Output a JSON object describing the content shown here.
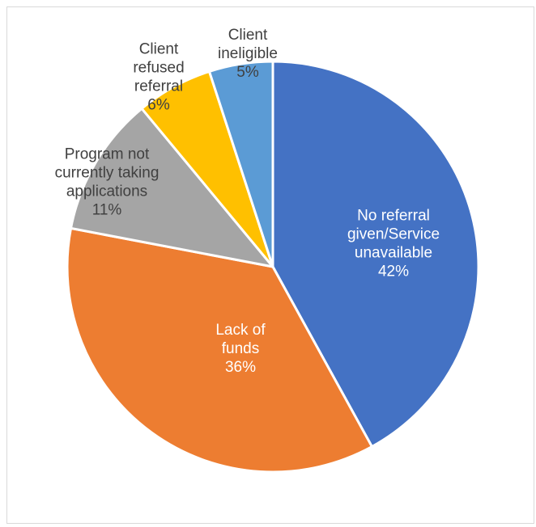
{
  "chart_data": {
    "type": "pie",
    "title": "",
    "slices": [
      {
        "label_lines": [
          "No referral",
          "given/Service",
          "unavailable"
        ],
        "percent_label": "42%",
        "value": 42,
        "color": "#4472C4",
        "label_color": "#ffffff"
      },
      {
        "label_lines": [
          "Lack of",
          "funds"
        ],
        "percent_label": "36%",
        "value": 36,
        "color": "#ED7D31",
        "label_color": "#ffffff"
      },
      {
        "label_lines": [
          "Program not",
          "currently taking",
          "applications"
        ],
        "percent_label": "11%",
        "value": 11,
        "color": "#A5A5A5",
        "label_color": "#404040"
      },
      {
        "label_lines": [
          "Client",
          "refused",
          "referral"
        ],
        "percent_label": "6%",
        "value": 6,
        "color": "#FFC000",
        "label_color": "#404040"
      },
      {
        "label_lines": [
          "Client",
          "ineligible"
        ],
        "percent_label": "5%",
        "value": 5,
        "color": "#5B9BD5",
        "label_color": "#404040"
      }
    ],
    "legend": "none",
    "direction": "clockwise-from-top"
  }
}
